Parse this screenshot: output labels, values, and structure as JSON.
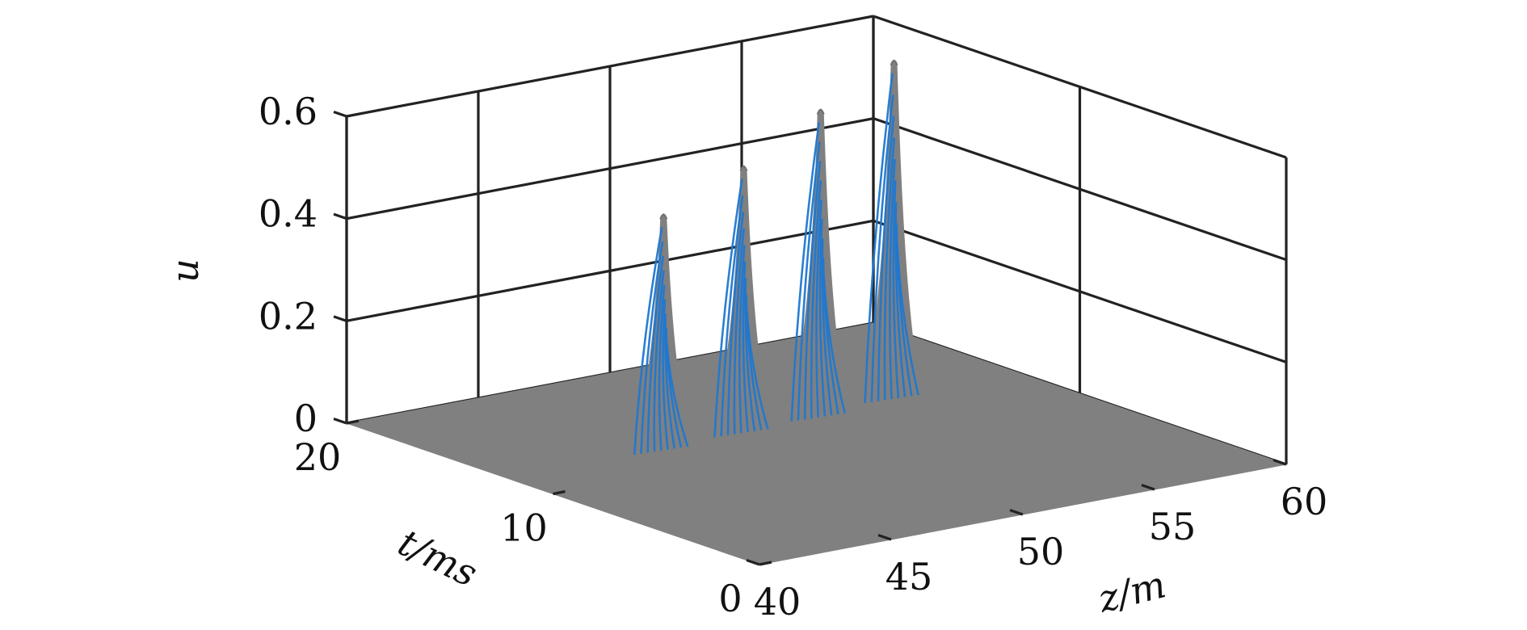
{
  "chart_data": {
    "type": "surface3d",
    "title": "",
    "xlabel": "z/m",
    "ylabel": "t/ms",
    "zlabel": "u",
    "xlim": [
      40,
      60
    ],
    "ylim": [
      0,
      20
    ],
    "zlim": [
      0,
      0.6
    ],
    "x_ticks": [
      "40",
      "45",
      "50",
      "55",
      "60"
    ],
    "y_ticks": [
      "0",
      "10",
      "20"
    ],
    "z_ticks": [
      "0",
      "0.2",
      "0.4",
      "0.6"
    ],
    "grid": true,
    "surface_color": "#808080",
    "stripe_color": "#1f77d0",
    "peaks": [
      {
        "z": 47.8,
        "t": 14.6,
        "u": 0.41
      },
      {
        "z": 51.0,
        "t": 14.8,
        "u": 0.47
      },
      {
        "z": 54.0,
        "t": 14.9,
        "u": 0.55
      },
      {
        "z": 57.1,
        "t": 15.3,
        "u": 0.61
      }
    ]
  }
}
